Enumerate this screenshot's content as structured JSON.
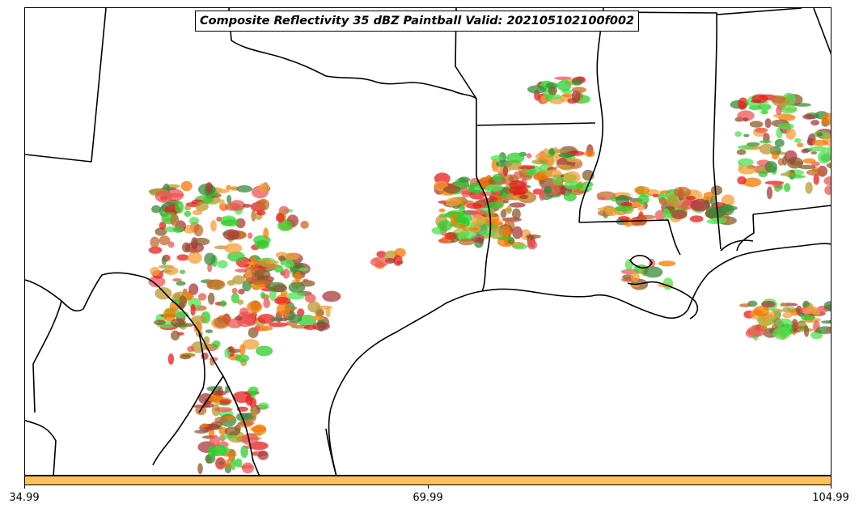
{
  "title": "Composite Reflectivity 35 dBZ Paintball Valid: 202105102100f002",
  "colorbar": {
    "color": "#ffc15c",
    "ticks": [
      "34.99",
      "69.99",
      "104.99"
    ]
  },
  "member_colors": [
    "#e81e1e",
    "#ee5656",
    "#f2a03a",
    "#f57900",
    "#b99a2f",
    "#8a5a2a",
    "#a83a3a",
    "#2dce2d",
    "#3a8a3a",
    "#52e052",
    "#c46a2a"
  ],
  "map": {
    "region": "South-Central United States",
    "features": [
      "state borders",
      "coastline",
      "rivers",
      "reflectivity paintball"
    ]
  }
}
